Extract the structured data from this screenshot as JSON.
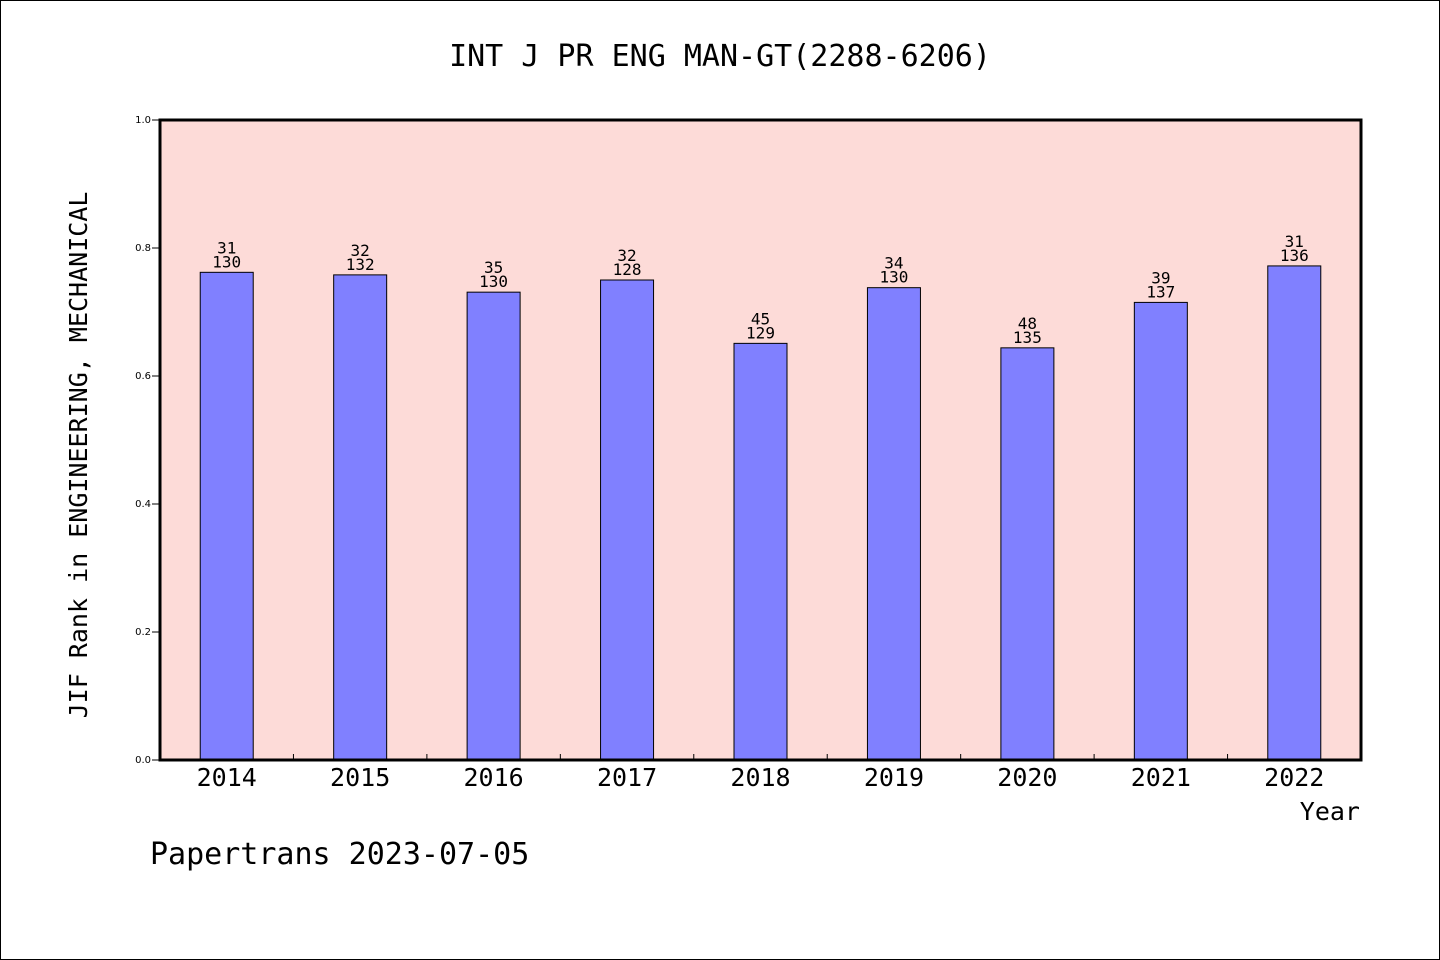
{
  "chart_data": {
    "type": "bar",
    "title": "INT J PR ENG MAN-GT(2288-6206)",
    "xlabel": "Year",
    "ylabel": "JIF Rank in ENGINEERING, MECHANICAL",
    "categories": [
      "2014",
      "2015",
      "2016",
      "2017",
      "2018",
      "2019",
      "2020",
      "2021",
      "2022"
    ],
    "values": [
      0.762,
      0.758,
      0.731,
      0.75,
      0.651,
      0.738,
      0.644,
      0.715,
      0.772
    ],
    "rank": [
      "31",
      "32",
      "35",
      "32",
      "45",
      "34",
      "48",
      "39",
      "31"
    ],
    "total": [
      "130",
      "132",
      "130",
      "128",
      "129",
      "130",
      "135",
      "137",
      "136"
    ],
    "ylim": [
      0,
      1.0
    ],
    "yticks": [
      "0.0",
      "0.2",
      "0.4",
      "0.6",
      "0.8",
      "1.0"
    ],
    "grid": false,
    "colors": {
      "bar": "#8080ff",
      "plot_background": "#fddbd8",
      "axis": "#000000"
    }
  },
  "footer": {
    "credit": "Papertrans 2023-07-05"
  }
}
